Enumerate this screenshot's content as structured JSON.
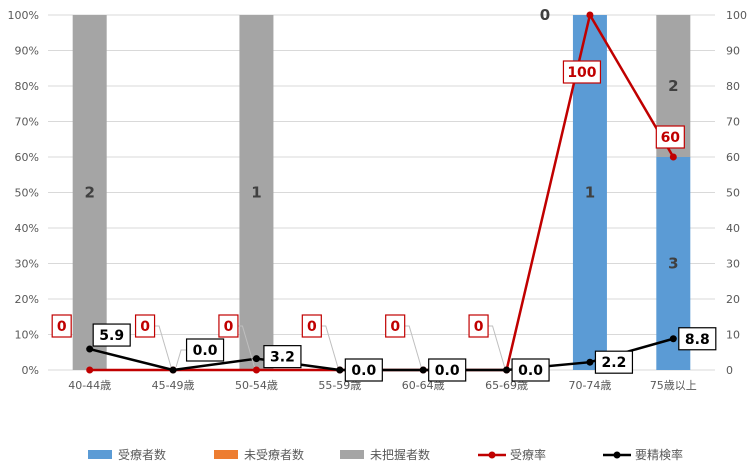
{
  "chart_data": {
    "type": "bar",
    "stacked": true,
    "percent_stacked": true,
    "categories": [
      "40-44歳",
      "45-49歳",
      "50-54歳",
      "55-59歳",
      "60-64歳",
      "65-69歳",
      "70-74歳",
      "75歳以上"
    ],
    "series": [
      {
        "name": "受療者数",
        "kind": "bar",
        "color": "#5b9bd5",
        "values": [
          0,
          0,
          0,
          0,
          0,
          0,
          1,
          3
        ]
      },
      {
        "name": "未受療者数",
        "kind": "bar",
        "color": "#ed7d31",
        "values": [
          0,
          0,
          0,
          0,
          0,
          0,
          0,
          0
        ]
      },
      {
        "name": "未把握者数",
        "kind": "bar",
        "color": "#a5a5a5",
        "values": [
          2,
          0,
          1,
          0,
          0,
          0,
          0,
          2
        ]
      },
      {
        "name": "受療率",
        "kind": "line",
        "color": "#c00000",
        "axis": "right",
        "values": [
          0,
          0,
          0,
          0,
          0,
          0,
          100,
          60
        ]
      },
      {
        "name": "要精検率",
        "kind": "line",
        "color": "#000000",
        "axis": "right",
        "values": [
          5.9,
          0.0,
          3.2,
          0.0,
          0.0,
          0.0,
          2.2,
          8.8
        ]
      }
    ],
    "y_left_ticks": [
      "0%",
      "10%",
      "20%",
      "30%",
      "40%",
      "50%",
      "60%",
      "70%",
      "80%",
      "90%",
      "100%"
    ],
    "y_right_ticks": [
      "0",
      "10",
      "20",
      "30",
      "40",
      "50",
      "60",
      "70",
      "80",
      "90",
      "100"
    ],
    "ylim_left": [
      0,
      100
    ],
    "ylim_right": [
      0,
      100
    ],
    "bar_labels": [
      {
        "category": 0,
        "series": "未把握者数",
        "text": "2"
      },
      {
        "category": 2,
        "series": "未把握者数",
        "text": "1"
      },
      {
        "category": 6,
        "series": "受療者数",
        "text": "1"
      },
      {
        "category": 6,
        "series": "未把握者数",
        "text": "0"
      },
      {
        "category": 7,
        "series": "受療者数",
        "text": "3"
      },
      {
        "category": 7,
        "series": "未把握者数",
        "text": "2"
      }
    ],
    "rate_labels": [
      "0",
      "0",
      "0",
      "0",
      "0",
      "0",
      "100",
      "60"
    ],
    "exam_labels": [
      "5.9",
      "0.0",
      "3.2",
      "0.0",
      "0.0",
      "0.0",
      "2.2",
      "8.8"
    ],
    "grid": true,
    "legend_position": "bottom"
  }
}
